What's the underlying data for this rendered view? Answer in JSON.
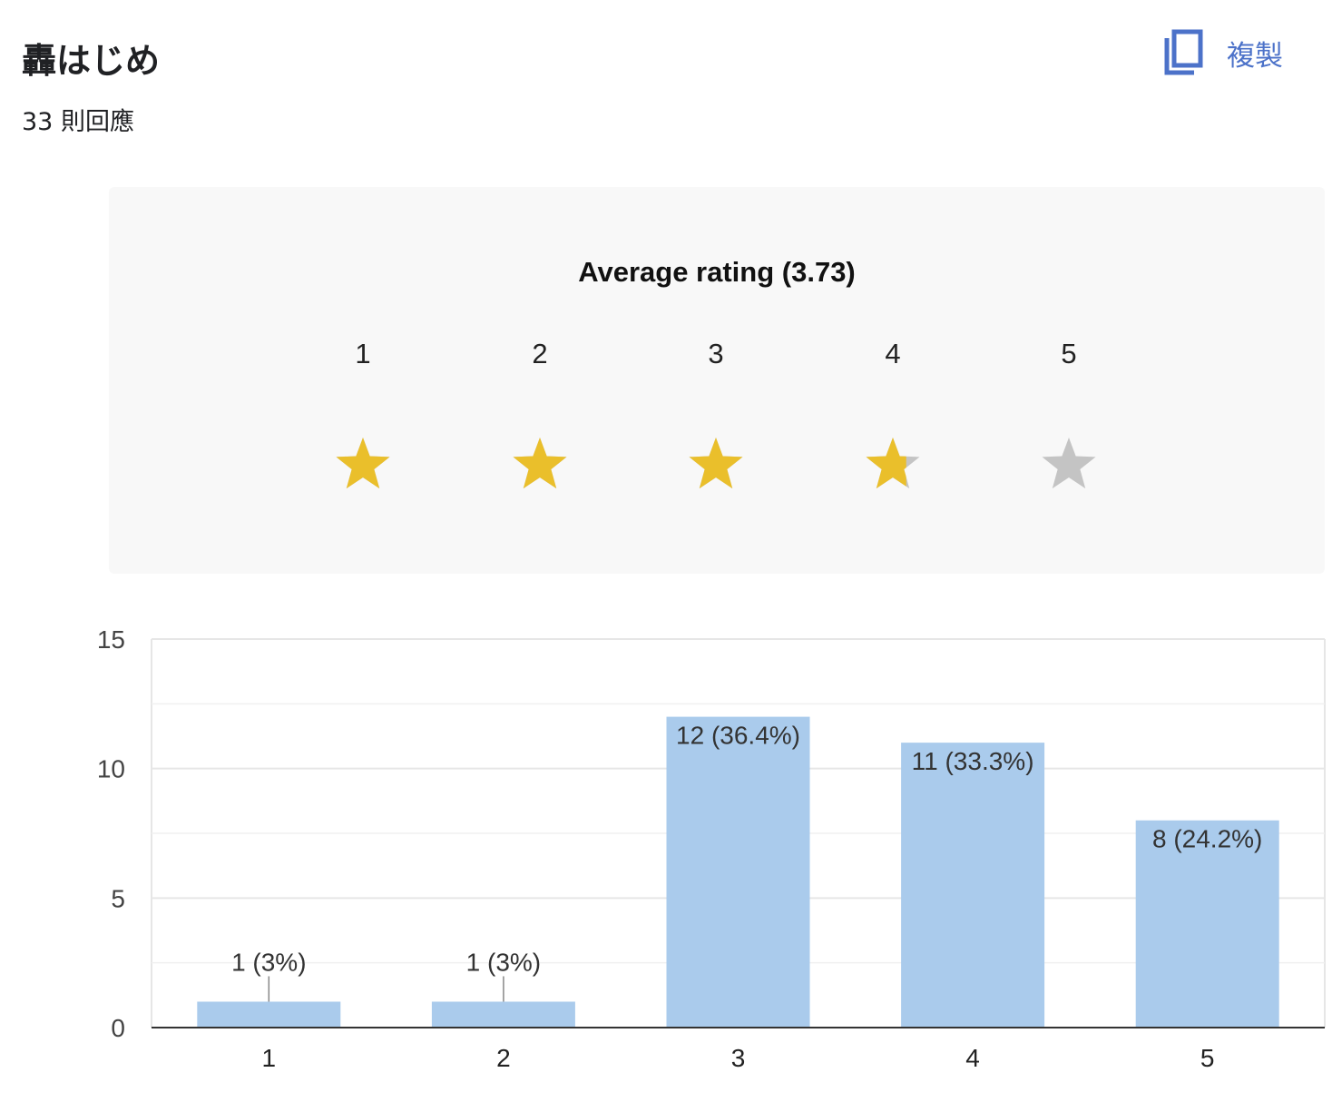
{
  "question": {
    "title": "轟はじめ",
    "response_count": "33 則回應"
  },
  "actions": {
    "copy_label": "複製",
    "copy_icon": "copy-icon"
  },
  "rating": {
    "title": "Average rating (3.73)",
    "average": 3.73,
    "scale": [
      "1",
      "2",
      "3",
      "4",
      "5"
    ],
    "star_filled_color": "#eabf2b",
    "star_empty_color": "#c4c4c4"
  },
  "chart_data": {
    "type": "bar",
    "categories": [
      "1",
      "2",
      "3",
      "4",
      "5"
    ],
    "values": [
      1,
      1,
      12,
      11,
      8
    ],
    "data_labels": [
      "1 (3%)",
      "1 (3%)",
      "12 (36.4%)",
      "11 (33.3%)",
      "8 (24.2%)"
    ],
    "ylim": [
      0,
      15
    ],
    "yticks": [
      "0",
      "5",
      "10",
      "15"
    ],
    "grid": true,
    "bar_color": "#aacbec"
  }
}
